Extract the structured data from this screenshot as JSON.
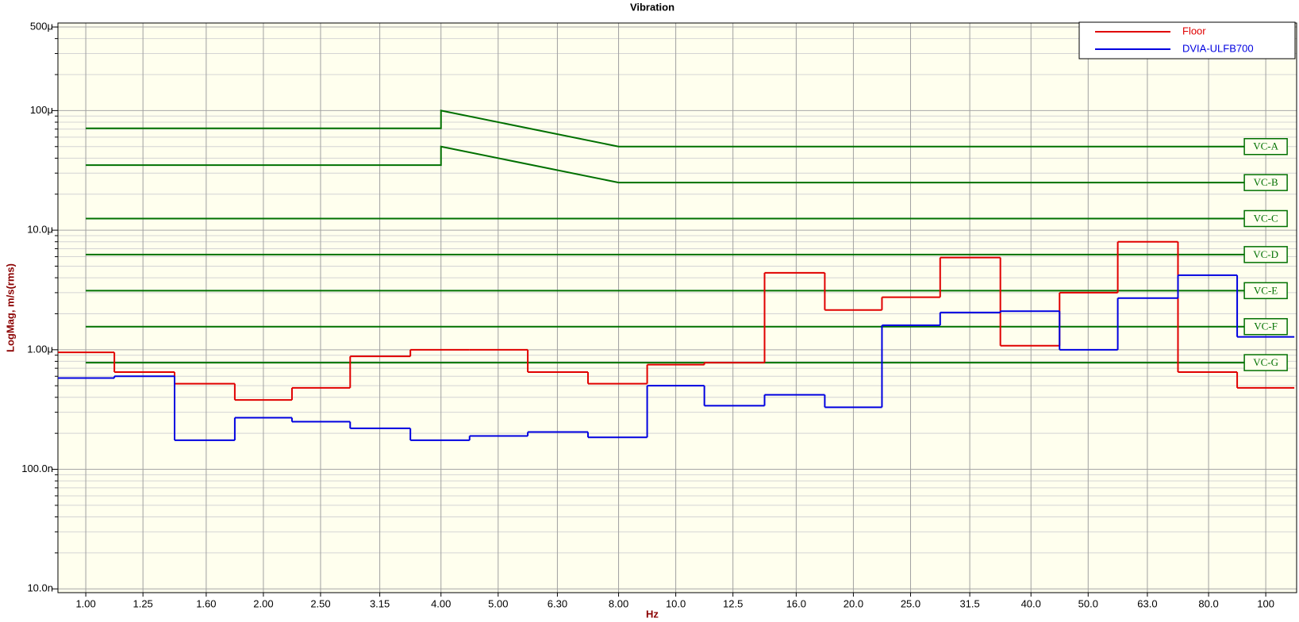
{
  "chart_data": {
    "type": "line",
    "title": "Vibration",
    "x_label": "Hz",
    "y_label": "LogMag, m/s(rms)",
    "xscale": "log",
    "yscale": "log",
    "xlim": [
      0.897,
      112.8
    ],
    "ylim": [
      9.3e-09,
      0.00054
    ],
    "xticks": [
      {
        "value": 1,
        "label": "1.00"
      },
      1.25,
      {
        "value": 1.6,
        "label": "1.60"
      },
      {
        "value": 2,
        "label": "2.00"
      },
      {
        "value": 2.5,
        "label": "2.50"
      },
      3.15,
      {
        "value": 4,
        "label": "4.00"
      },
      {
        "value": 5,
        "label": "5.00"
      },
      {
        "value": 6.3,
        "label": "6.30"
      },
      {
        "value": 8,
        "label": "8.00"
      },
      {
        "value": 10,
        "label": "10.0"
      },
      12.5,
      {
        "value": 16,
        "label": "16.0"
      },
      {
        "value": 20,
        "label": "20.0"
      },
      {
        "value": 25,
        "label": "25.0"
      },
      31.5,
      {
        "value": 40,
        "label": "40.0"
      },
      {
        "value": 50,
        "label": "50.0"
      },
      {
        "value": 63,
        "label": "63.0"
      },
      {
        "value": 80,
        "label": "80.0"
      },
      100
    ],
    "yticks": [
      {
        "value": 1e-08,
        "label": "10.0n"
      },
      {
        "value": 1e-07,
        "label": "100.0n"
      },
      {
        "value": 1e-06,
        "label": "1.00μ"
      },
      {
        "value": 1e-05,
        "label": "10.0μ"
      },
      {
        "value": 0.0001,
        "label": "100μ"
      },
      {
        "value": 0.0005,
        "label": "500μ"
      }
    ],
    "grid": true,
    "legend": "upper right",
    "x": [
      1,
      1.25,
      1.6,
      2,
      2.5,
      3.15,
      4,
      5,
      6.3,
      8,
      10,
      12.5,
      16,
      20,
      25,
      31.5,
      40,
      50,
      63,
      80,
      100
    ],
    "series": [
      {
        "name": "Floor",
        "color": "#e00000",
        "values": [
          9.5e-07,
          6.5e-07,
          5.2e-07,
          3.8e-07,
          4.8e-07,
          8.8e-07,
          1e-06,
          1e-06,
          6.5e-07,
          5.2e-07,
          7.5e-07,
          7.8e-07,
          4.4e-06,
          2.15e-06,
          2.75e-06,
          5.9e-06,
          1.08e-06,
          3e-06,
          8e-06,
          6.5e-07,
          4.8e-07
        ]
      },
      {
        "name": "DVIA-ULFB700",
        "color": "#0000e0",
        "values": [
          5.8e-07,
          6e-07,
          1.75e-07,
          2.7e-07,
          2.5e-07,
          2.2e-07,
          1.75e-07,
          1.9e-07,
          2.05e-07,
          1.85e-07,
          5e-07,
          3.4e-07,
          4.2e-07,
          3.3e-07,
          1.6e-06,
          2.05e-06,
          2.1e-06,
          1e-06,
          2.7e-06,
          4.2e-06,
          1.28e-06
        ]
      }
    ],
    "criteria": [
      {
        "name": "VC-A",
        "color": "#007000",
        "x": [
          1,
          4,
          4,
          8,
          100
        ],
        "values": [
          7.1e-05,
          7.1e-05,
          0.0001,
          5e-05,
          5e-05
        ]
      },
      {
        "name": "VC-B",
        "color": "#007000",
        "x": [
          1,
          4,
          4,
          8,
          100
        ],
        "values": [
          3.5e-05,
          3.5e-05,
          5e-05,
          2.5e-05,
          2.5e-05
        ]
      },
      {
        "name": "VC-C",
        "color": "#007000",
        "x": [
          1,
          100
        ],
        "values": [
          1.25e-05,
          1.25e-05
        ]
      },
      {
        "name": "VC-D",
        "color": "#007000",
        "x": [
          1,
          100
        ],
        "values": [
          6.25e-06,
          6.25e-06
        ]
      },
      {
        "name": "VC-E",
        "color": "#007000",
        "x": [
          1,
          100
        ],
        "values": [
          3.12e-06,
          3.12e-06
        ]
      },
      {
        "name": "VC-F",
        "color": "#007000",
        "x": [
          1,
          100
        ],
        "values": [
          1.56e-06,
          1.56e-06
        ]
      },
      {
        "name": "VC-G",
        "color": "#007000",
        "x": [
          1,
          100
        ],
        "values": [
          7.8e-07,
          7.8e-07
        ]
      }
    ]
  }
}
